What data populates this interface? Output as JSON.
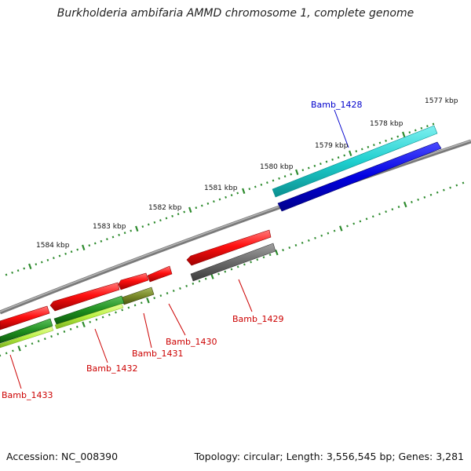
{
  "title": "Burkholderia ambifaria AMMD chromosome 1, complete genome",
  "footer": {
    "accession": "Accession: NC_008390",
    "summary": "Topology: circular; Length: 3,556,545 bp; Genes: 3,281"
  },
  "colors": {
    "backbone": "#8a8a8a",
    "tick": "#2e8b2e",
    "label_red": "#cc0000",
    "label_blue": "#0000cc"
  },
  "scale_ticks": [
    "1577 kbp",
    "1578 kbp",
    "1579 kbp",
    "1580 kbp",
    "1581 kbp",
    "1582 kbp",
    "1583 kbp",
    "1584 kbp"
  ],
  "genes": [
    {
      "label": "Bamb_1428",
      "color": "#0000cc"
    },
    {
      "label": "Bamb_1429",
      "color": "#cc0000"
    },
    {
      "label": "Bamb_1430",
      "color": "#cc0000"
    },
    {
      "label": "Bamb_1431",
      "color": "#cc0000"
    },
    {
      "label": "Bamb_1432",
      "color": "#cc0000"
    },
    {
      "label": "Bamb_1433",
      "color": "#cc0000"
    }
  ]
}
